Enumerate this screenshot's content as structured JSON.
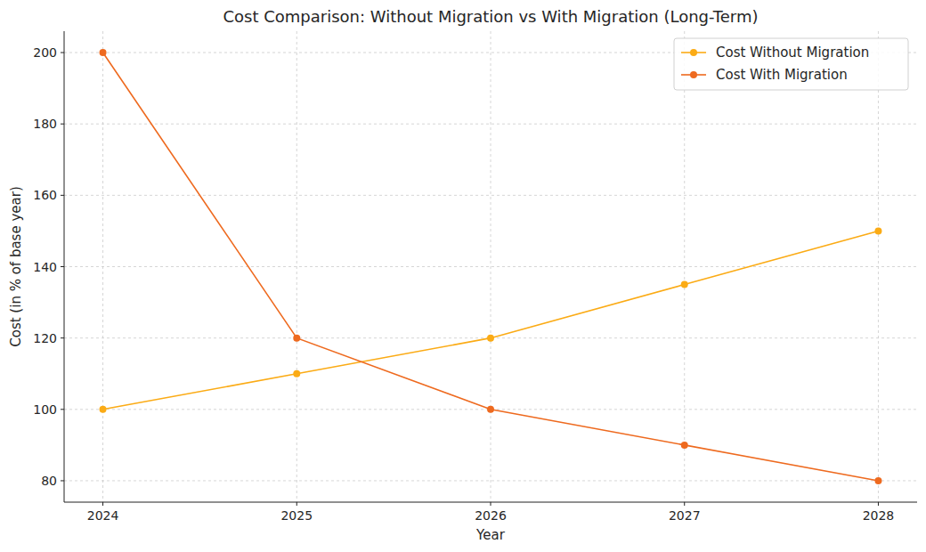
{
  "chart_data": {
    "type": "line",
    "title": "Cost Comparison: Without Migration vs With Migration (Long-Term)",
    "x_label": "Year",
    "y_label": "Cost (in % of base year)",
    "x": [
      2024,
      2025,
      2026,
      2027,
      2028
    ],
    "xlim": [
      2023.8,
      2028.2
    ],
    "xticks": [
      2024,
      2025,
      2026,
      2027,
      2028
    ],
    "ylim": [
      74,
      206
    ],
    "yticks": [
      80,
      100,
      120,
      140,
      160,
      180,
      200
    ],
    "grid": true,
    "legend": "upper right",
    "marker": "o",
    "line_style": "solid",
    "series": [
      {
        "name": "Cost Without Migration",
        "color": "#fbab15",
        "values": [
          100,
          110,
          120,
          135,
          150
        ]
      },
      {
        "name": "Cost With Migration",
        "color": "#ee6a1f",
        "values": [
          200,
          120,
          100,
          90,
          80
        ]
      }
    ]
  }
}
